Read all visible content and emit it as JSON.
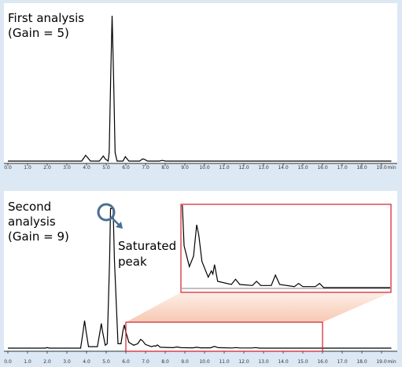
{
  "chart_data": [
    {
      "type": "line",
      "label": [
        "First analysis",
        "(Gain = 5)"
      ],
      "xlabel": "min",
      "xlim": [
        0,
        19.5
      ],
      "ylim": [
        0,
        100
      ],
      "xticks": [
        {
          "value": 0,
          "label": "0.0"
        },
        {
          "value": 1,
          "label": "1.0"
        },
        {
          "value": 2,
          "label": "2.0"
        },
        {
          "value": 3,
          "label": "3.0"
        },
        {
          "value": 4,
          "label": "4.0"
        },
        {
          "value": 5,
          "label": "5.0"
        },
        {
          "value": 6,
          "label": "6.0"
        },
        {
          "value": 7,
          "label": "7.0"
        },
        {
          "value": 8,
          "label": "8.0"
        },
        {
          "value": 9,
          "label": "9.0"
        },
        {
          "value": 10,
          "label": "10.0"
        },
        {
          "value": 11,
          "label": "11.0"
        },
        {
          "value": 12,
          "label": "12.0"
        },
        {
          "value": 13,
          "label": "13.0"
        },
        {
          "value": 14,
          "label": "14.0"
        },
        {
          "value": 15,
          "label": "15.0"
        },
        {
          "value": 16,
          "label": "16.0"
        },
        {
          "value": 17,
          "label": "17.0"
        },
        {
          "value": 18,
          "label": "18.0"
        },
        {
          "value": 19,
          "label": "19.0"
        }
      ],
      "color": "#000000",
      "x": [
        0,
        3.75,
        3.88,
        3.95,
        4.05,
        4.2,
        4.65,
        4.78,
        4.85,
        4.95,
        5.1,
        5.15,
        5.23,
        5.3,
        5.37,
        5.45,
        5.55,
        5.85,
        5.97,
        6.03,
        6.15,
        6.7,
        6.85,
        6.95,
        7.1,
        7.7,
        7.85,
        8.0,
        19.5
      ],
      "y": [
        0,
        0,
        2.5,
        4,
        2.5,
        0,
        0,
        2.2,
        3.5,
        1.5,
        0,
        6,
        60,
        100,
        60,
        6,
        0,
        0,
        3,
        2,
        0,
        0,
        1.5,
        1.2,
        0,
        0,
        0.5,
        0,
        0
      ]
    },
    {
      "type": "line",
      "label": [
        "Second",
        "analysis",
        "(Gain = 9)"
      ],
      "annotation": [
        "Saturated",
        "peak"
      ],
      "xlabel": "min",
      "xlim": [
        0,
        19.5
      ],
      "ylim": [
        0,
        100
      ],
      "zoom_xlim": [
        6,
        16
      ],
      "zoom_ylim": [
        0,
        7.5
      ],
      "xticks": [
        {
          "value": 0,
          "label": "0.0"
        },
        {
          "value": 1,
          "label": "1.0"
        },
        {
          "value": 2,
          "label": "2.0"
        },
        {
          "value": 3,
          "label": "3.0"
        },
        {
          "value": 4,
          "label": "4.0"
        },
        {
          "value": 5,
          "label": "5.0"
        },
        {
          "value": 6,
          "label": "6.0"
        },
        {
          "value": 7,
          "label": "7.0"
        },
        {
          "value": 8,
          "label": "8.0"
        },
        {
          "value": 9,
          "label": "9.0"
        },
        {
          "value": 10,
          "label": "10.0"
        },
        {
          "value": 11,
          "label": "11.0"
        },
        {
          "value": 12,
          "label": "12.0"
        },
        {
          "value": 13,
          "label": "13.0"
        },
        {
          "value": 14,
          "label": "14.0"
        },
        {
          "value": 15,
          "label": "15.0"
        },
        {
          "value": 16,
          "label": "16.0"
        },
        {
          "value": 17,
          "label": "17.0"
        },
        {
          "value": 18,
          "label": "18.0"
        },
        {
          "value": 19,
          "label": "19.0"
        }
      ],
      "color": "#000000",
      "x": [
        0,
        1.9,
        2.0,
        2.1,
        3.7,
        3.83,
        3.9,
        3.97,
        4.1,
        4.55,
        4.68,
        4.75,
        4.82,
        4.95,
        5.05,
        5.17,
        5.22,
        5.35,
        5.42,
        5.6,
        5.75,
        5.85,
        5.92,
        6.0,
        6.15,
        6.4,
        6.6,
        6.75,
        6.85,
        7.0,
        7.3,
        7.45,
        7.52,
        7.6,
        7.75,
        8.4,
        8.6,
        8.8,
        9.4,
        9.6,
        9.8,
        10.3,
        10.5,
        10.7,
        11.4,
        11.6,
        11.8,
        12.4,
        12.6,
        12.8,
        19.5
      ],
      "y": [
        0,
        0,
        0.4,
        0,
        0,
        12,
        19,
        12,
        1,
        1,
        11,
        17,
        11,
        2,
        3,
        60,
        96,
        96,
        60,
        3,
        3,
        12,
        16,
        11,
        4,
        2,
        3,
        6,
        5,
        2.5,
        1,
        1.6,
        1.3,
        2.2,
        0.6,
        0.3,
        0.8,
        0.3,
        0.2,
        0.6,
        0.2,
        0.2,
        1.2,
        0.3,
        0.1,
        0.4,
        0.1,
        0.1,
        0.4,
        0,
        0
      ]
    }
  ]
}
